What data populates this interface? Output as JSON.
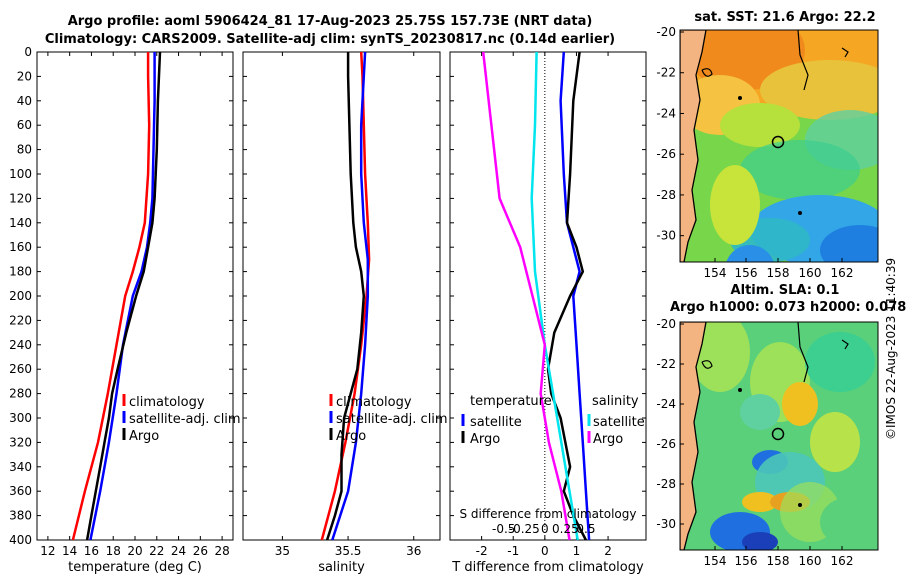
{
  "header": {
    "title_line1": "Argo profile: aoml 5906424_81 17-Aug-2023 25.75S  157.73E (NRT data)",
    "title_line2": "Climatology: CARS2009. Satellite-adj clim: synTS_20230817.nc (0.14d earlier)"
  },
  "colors": {
    "climatology": "#ff0000",
    "satellite": "#0000ff",
    "argo": "#000000",
    "sal_diff_argo": "#ff00ff",
    "sal_diff_sat": "#00e5ee"
  },
  "chart_data": [
    {
      "type": "line",
      "name": "temperature-profile",
      "xlabel": "temperature (deg C)",
      "xlim": [
        11,
        29
      ],
      "xticks": [
        "12",
        "14",
        "16",
        "18",
        "20",
        "22",
        "24",
        "26",
        "28"
      ],
      "ylim": [
        0,
        400
      ],
      "yticks": [
        "0",
        "20",
        "40",
        "60",
        "80",
        "100",
        "120",
        "140",
        "160",
        "180",
        "200",
        "220",
        "240",
        "260",
        "280",
        "300",
        "320",
        "340",
        "360",
        "380",
        "400"
      ],
      "legend": [
        "climatology",
        "satellite-adj. clim",
        "Argo"
      ],
      "series": [
        {
          "name": "climatology",
          "depth": [
            0,
            20,
            60,
            100,
            140,
            160,
            180,
            200,
            240,
            280,
            320,
            360,
            400
          ],
          "values": [
            21.2,
            21.2,
            21.3,
            21.2,
            20.9,
            20.4,
            19.8,
            19.1,
            18.3,
            17.5,
            16.6,
            15.4,
            14.3
          ]
        },
        {
          "name": "satellite-adj. clim",
          "depth": [
            0,
            40,
            80,
            120,
            140,
            160,
            180,
            200,
            240,
            280,
            320,
            360,
            400
          ],
          "values": [
            21.8,
            21.8,
            21.7,
            21.6,
            21.4,
            21.1,
            20.6,
            19.8,
            18.9,
            18.3,
            17.6,
            16.8,
            15.9
          ]
        },
        {
          "name": "Argo",
          "depth": [
            0,
            40,
            80,
            120,
            140,
            160,
            180,
            200,
            230,
            260,
            280,
            300,
            320,
            340,
            360,
            380,
            400
          ],
          "values": [
            22.3,
            22.1,
            22.0,
            21.8,
            21.6,
            21.2,
            20.8,
            20.1,
            19.2,
            18.4,
            17.9,
            17.6,
            17.2,
            16.8,
            16.4,
            16.0,
            15.6
          ]
        }
      ]
    },
    {
      "type": "line",
      "name": "salinity-profile",
      "xlabel": "salinity",
      "xlim": [
        34.7,
        36.2
      ],
      "xticks": [
        "35",
        "35.5",
        "36"
      ],
      "ylim": [
        0,
        400
      ],
      "legend": [
        "climatology",
        "satellite-adj. clim",
        "Argo"
      ],
      "series": [
        {
          "name": "climatology",
          "depth": [
            0,
            20,
            60,
            100,
            140,
            170,
            200,
            240,
            280,
            320,
            360,
            400
          ],
          "values": [
            35.6,
            35.61,
            35.62,
            35.63,
            35.65,
            35.66,
            35.64,
            35.6,
            35.55,
            35.48,
            35.4,
            35.3
          ]
        },
        {
          "name": "satellite-adj. clim",
          "depth": [
            0,
            20,
            60,
            100,
            140,
            170,
            200,
            240,
            280,
            320,
            360,
            400
          ],
          "values": [
            35.63,
            35.62,
            35.6,
            35.6,
            35.62,
            35.65,
            35.65,
            35.63,
            35.6,
            35.56,
            35.5,
            35.38
          ]
        },
        {
          "name": "Argo",
          "depth": [
            0,
            20,
            60,
            100,
            140,
            160,
            180,
            200,
            230,
            260,
            280,
            300,
            330,
            360,
            380,
            400
          ],
          "values": [
            35.5,
            35.5,
            35.51,
            35.52,
            35.54,
            35.56,
            35.6,
            35.62,
            35.6,
            35.57,
            35.52,
            35.47,
            35.45,
            35.45,
            35.4,
            35.34
          ]
        }
      ]
    },
    {
      "type": "line",
      "name": "difference-profile",
      "xlabel": "T difference from climatology",
      "xlim": [
        -3,
        3.2
      ],
      "xticks": [
        "-2",
        "-1",
        "0",
        "1",
        "2"
      ],
      "top_axis_label": "S difference from climatology",
      "top_ticks": [
        "-0.5",
        "-0.25",
        "0",
        "0.25",
        "0.5"
      ],
      "ylim": [
        0,
        400
      ],
      "legend_temperature_title": "temperature",
      "legend_temperature": [
        "satellite",
        "Argo"
      ],
      "legend_salinity_title": "salinity",
      "legend_salinity": [
        "satellite",
        "Argo"
      ],
      "series": [
        {
          "name": "temperature satellite",
          "depth": [
            0,
            40,
            100,
            140,
            160,
            180,
            200,
            240,
            280,
            320,
            360,
            400
          ],
          "values": [
            0.6,
            0.5,
            0.6,
            0.7,
            0.9,
            1.1,
            0.9,
            1.0,
            1.1,
            1.2,
            1.3,
            1.4
          ]
        },
        {
          "name": "temperature Argo",
          "depth": [
            0,
            40,
            100,
            140,
            160,
            180,
            200,
            230,
            260,
            280,
            300,
            340,
            360,
            380,
            400
          ],
          "values": [
            1.1,
            0.9,
            0.8,
            0.7,
            1.0,
            1.2,
            0.8,
            0.3,
            0.1,
            0.2,
            0.5,
            0.8,
            0.6,
            0.9,
            1.3
          ]
        },
        {
          "name": "salinity satellite",
          "depth": [
            0,
            60,
            120,
            180,
            240,
            300,
            360,
            400
          ],
          "values": [
            -0.1,
            -0.12,
            -0.16,
            -0.12,
            0.0,
            0.15,
            0.3,
            0.4
          ]
        },
        {
          "name": "salinity Argo",
          "depth": [
            0,
            60,
            120,
            160,
            200,
            240,
            280,
            320,
            360,
            400
          ],
          "values": [
            -0.75,
            -0.65,
            -0.55,
            -0.3,
            -0.15,
            0.0,
            -0.05,
            0.05,
            0.2,
            0.3
          ]
        }
      ]
    },
    {
      "type": "heatmap",
      "name": "sst-map",
      "title": "sat. SST: 21.6 Argo: 22.2",
      "xticks": [
        "154",
        "156",
        "158",
        "160",
        "162"
      ],
      "yticks": [
        "-20",
        "-22",
        "-24",
        "-26",
        "-28",
        "-30"
      ],
      "argo_position": {
        "lon": 157.73,
        "lat": -25.75
      }
    },
    {
      "type": "heatmap",
      "name": "sla-map",
      "title_line1": "Altim. SLA: 0.1",
      "title_line2": "Argo h1000: 0.073 h2000: 0.078",
      "xticks": [
        "154",
        "156",
        "158",
        "160",
        "162"
      ],
      "yticks": [
        "-20",
        "-22",
        "-24",
        "-26",
        "-28",
        "-30"
      ],
      "argo_position": {
        "lon": 157.73,
        "lat": -25.75
      }
    }
  ],
  "footer": {
    "credit": "©IMOS 22-Aug-2023 11:40:39"
  }
}
